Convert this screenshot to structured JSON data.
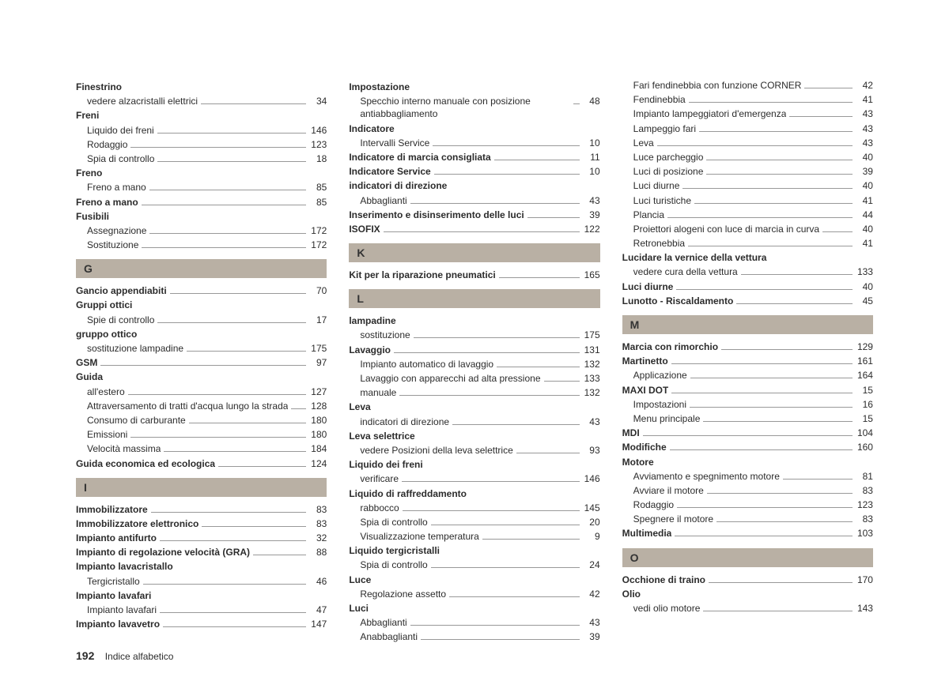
{
  "footer": {
    "page_number": "192",
    "title": "Indice alfabetico"
  },
  "columns": [
    {
      "items": [
        {
          "type": "heading",
          "label": "Finestrino"
        },
        {
          "type": "sub",
          "label": "vedere alzacristalli elettrici",
          "page": "34"
        },
        {
          "type": "heading",
          "label": "Freni"
        },
        {
          "type": "sub",
          "label": "Liquido dei freni",
          "page": "146"
        },
        {
          "type": "sub",
          "label": "Rodaggio",
          "page": "123"
        },
        {
          "type": "sub",
          "label": "Spia di controllo",
          "page": "18"
        },
        {
          "type": "heading",
          "label": "Freno"
        },
        {
          "type": "sub",
          "label": "Freno a mano",
          "page": "85"
        },
        {
          "type": "bold",
          "label": "Freno a mano",
          "page": "85"
        },
        {
          "type": "heading",
          "label": "Fusibili"
        },
        {
          "type": "sub",
          "label": "Assegnazione",
          "page": "172"
        },
        {
          "type": "sub",
          "label": "Sostituzione",
          "page": "172"
        },
        {
          "type": "letter",
          "label": "G"
        },
        {
          "type": "bold",
          "label": "Gancio appendiabiti",
          "page": "70"
        },
        {
          "type": "heading",
          "label": "Gruppi ottici"
        },
        {
          "type": "sub",
          "label": "Spie di controllo",
          "page": "17"
        },
        {
          "type": "heading",
          "label": "gruppo ottico"
        },
        {
          "type": "sub",
          "label": "sostituzione lampadine",
          "page": "175"
        },
        {
          "type": "bold",
          "label": "GSM",
          "page": "97"
        },
        {
          "type": "heading",
          "label": "Guida"
        },
        {
          "type": "sub",
          "label": "all'estero",
          "page": "127"
        },
        {
          "type": "sub",
          "label": "Attraversamento di tratti d'acqua lungo la strada",
          "page": "128"
        },
        {
          "type": "sub",
          "label": "Consumo di carburante",
          "page": "180"
        },
        {
          "type": "sub",
          "label": "Emissioni",
          "page": "180"
        },
        {
          "type": "sub",
          "label": "Velocità massima",
          "page": "184"
        },
        {
          "type": "bold",
          "label": "Guida economica ed ecologica",
          "page": "124"
        },
        {
          "type": "letter",
          "label": "I"
        },
        {
          "type": "bold",
          "label": "Immobilizzatore",
          "page": "83"
        },
        {
          "type": "bold",
          "label": "Immobilizzatore elettronico",
          "page": "83"
        },
        {
          "type": "bold",
          "label": "Impianto antifurto",
          "page": "32"
        },
        {
          "type": "bold",
          "label": "Impianto di regolazione velocità (GRA)",
          "page": "88"
        },
        {
          "type": "heading",
          "label": "Impianto lavacristallo"
        },
        {
          "type": "sub",
          "label": "Tergicristallo",
          "page": "46"
        },
        {
          "type": "heading",
          "label": "Impianto lavafari"
        },
        {
          "type": "sub",
          "label": "Impianto lavafari",
          "page": "47"
        },
        {
          "type": "bold",
          "label": "Impianto lavavetro",
          "page": "147"
        }
      ]
    },
    {
      "items": [
        {
          "type": "heading",
          "label": "Impostazione"
        },
        {
          "type": "sub",
          "label": "Specchio interno manuale con posizione antiabbagliamento",
          "page": "48"
        },
        {
          "type": "heading",
          "label": "Indicatore"
        },
        {
          "type": "sub",
          "label": "Intervalli Service",
          "page": "10"
        },
        {
          "type": "bold",
          "label": "Indicatore di marcia consigliata",
          "page": "11"
        },
        {
          "type": "bold",
          "label": "Indicatore Service",
          "page": "10"
        },
        {
          "type": "heading",
          "label": "indicatori di direzione"
        },
        {
          "type": "sub",
          "label": "Abbaglianti",
          "page": "43"
        },
        {
          "type": "bold",
          "label": "Inserimento e disinserimento delle luci",
          "page": "39"
        },
        {
          "type": "bold",
          "label": "ISOFIX",
          "page": "122"
        },
        {
          "type": "letter",
          "label": "K"
        },
        {
          "type": "bold",
          "label": "Kit per la riparazione pneumatici",
          "page": "165"
        },
        {
          "type": "letter",
          "label": "L"
        },
        {
          "type": "heading",
          "label": "lampadine"
        },
        {
          "type": "sub",
          "label": "sostituzione",
          "page": "175"
        },
        {
          "type": "bold",
          "label": "Lavaggio",
          "page": "131"
        },
        {
          "type": "sub",
          "label": "Impianto automatico di lavaggio",
          "page": "132"
        },
        {
          "type": "sub",
          "label": "Lavaggio con apparecchi ad alta pressione",
          "page": "133"
        },
        {
          "type": "sub",
          "label": "manuale",
          "page": "132"
        },
        {
          "type": "heading",
          "label": "Leva"
        },
        {
          "type": "sub",
          "label": "indicatori di direzione",
          "page": "43"
        },
        {
          "type": "heading",
          "label": "Leva selettrice"
        },
        {
          "type": "sub",
          "label": "vedere Posizioni della leva selettrice",
          "page": "93"
        },
        {
          "type": "heading",
          "label": "Liquido dei freni"
        },
        {
          "type": "sub",
          "label": "verificare",
          "page": "146"
        },
        {
          "type": "heading",
          "label": "Liquido di raffreddamento"
        },
        {
          "type": "sub",
          "label": "rabbocco",
          "page": "145"
        },
        {
          "type": "sub",
          "label": "Spia di controllo",
          "page": "20"
        },
        {
          "type": "sub",
          "label": "Visualizzazione temperatura",
          "page": "9"
        },
        {
          "type": "heading",
          "label": "Liquido tergicristalli"
        },
        {
          "type": "sub",
          "label": "Spia di controllo",
          "page": "24"
        },
        {
          "type": "heading",
          "label": "Luce"
        },
        {
          "type": "sub",
          "label": "Regolazione assetto",
          "page": "42"
        },
        {
          "type": "heading",
          "label": "Luci"
        },
        {
          "type": "sub",
          "label": "Abbaglianti",
          "page": "43"
        },
        {
          "type": "sub",
          "label": "Anabbaglianti",
          "page": "39"
        }
      ]
    },
    {
      "items": [
        {
          "type": "sub",
          "label": "Fari fendinebbia con funzione CORNER",
          "page": "42"
        },
        {
          "type": "sub",
          "label": "Fendinebbia",
          "page": "41"
        },
        {
          "type": "sub",
          "label": "Impianto lampeggiatori d'emergenza",
          "page": "43"
        },
        {
          "type": "sub",
          "label": "Lampeggio fari",
          "page": "43"
        },
        {
          "type": "sub",
          "label": "Leva",
          "page": "43"
        },
        {
          "type": "sub",
          "label": "Luce parcheggio",
          "page": "40"
        },
        {
          "type": "sub",
          "label": "Luci di posizione",
          "page": "39"
        },
        {
          "type": "sub",
          "label": "Luci diurne",
          "page": "40"
        },
        {
          "type": "sub",
          "label": "Luci turistiche",
          "page": "41"
        },
        {
          "type": "sub",
          "label": "Plancia",
          "page": "44"
        },
        {
          "type": "sub",
          "label": "Proiettori alogeni con luce di marcia in curva",
          "page": "40"
        },
        {
          "type": "sub",
          "label": "Retronebbia",
          "page": "41"
        },
        {
          "type": "heading",
          "label": "Lucidare la vernice della vettura"
        },
        {
          "type": "sub",
          "label": "vedere cura della vettura",
          "page": "133"
        },
        {
          "type": "bold",
          "label": "Luci diurne",
          "page": "40"
        },
        {
          "type": "bold",
          "label": "Lunotto - Riscaldamento",
          "page": "45"
        },
        {
          "type": "letter",
          "label": "M"
        },
        {
          "type": "bold",
          "label": "Marcia con rimorchio",
          "page": "129"
        },
        {
          "type": "bold",
          "label": "Martinetto",
          "page": "161"
        },
        {
          "type": "sub",
          "label": "Applicazione",
          "page": "164"
        },
        {
          "type": "bold",
          "label": "MAXI DOT",
          "page": "15"
        },
        {
          "type": "sub",
          "label": "Impostazioni",
          "page": "16"
        },
        {
          "type": "sub",
          "label": "Menu principale",
          "page": "15"
        },
        {
          "type": "bold",
          "label": "MDI",
          "page": "104"
        },
        {
          "type": "bold",
          "label": "Modifiche",
          "page": "160"
        },
        {
          "type": "heading",
          "label": "Motore"
        },
        {
          "type": "sub",
          "label": "Avviamento e spegnimento motore",
          "page": "81"
        },
        {
          "type": "sub",
          "label": "Avviare il motore",
          "page": "83"
        },
        {
          "type": "sub",
          "label": "Rodaggio",
          "page": "123"
        },
        {
          "type": "sub",
          "label": "Spegnere il motore",
          "page": "83"
        },
        {
          "type": "bold",
          "label": "Multimedia",
          "page": "103"
        },
        {
          "type": "letter",
          "label": "O"
        },
        {
          "type": "bold",
          "label": "Occhione di traino",
          "page": "170"
        },
        {
          "type": "heading",
          "label": "Olio"
        },
        {
          "type": "sub",
          "label": "vedi olio motore",
          "page": "143"
        }
      ]
    }
  ]
}
